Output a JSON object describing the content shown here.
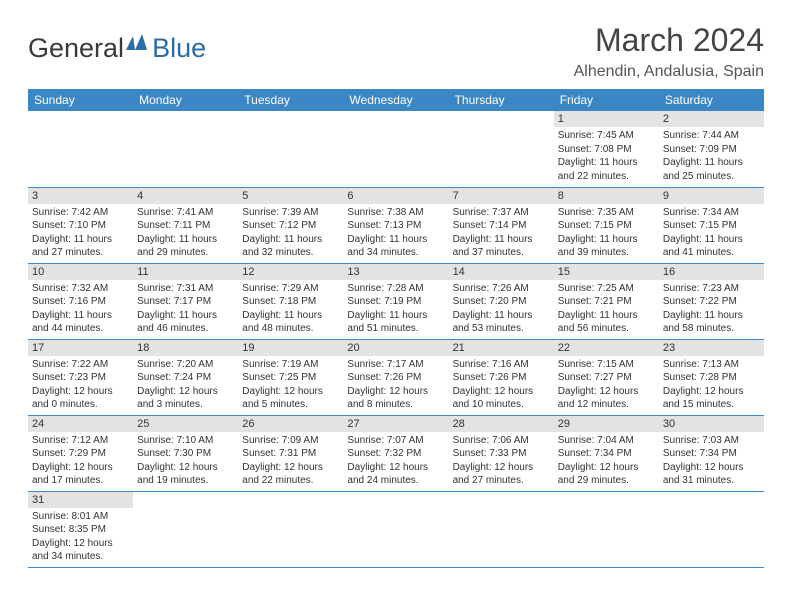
{
  "logo": {
    "text1": "General",
    "text2": "Blue"
  },
  "title": "March 2024",
  "location": "Alhendin, Andalusia, Spain",
  "colors": {
    "header_bg": "#3b86c4",
    "header_fg": "#ffffff",
    "daynum_bg": "#e3e3e3",
    "row_border": "#3b86c4",
    "title_color": "#444444",
    "logo_gray": "#3a3a3a",
    "logo_blue": "#2b6ca3"
  },
  "weekdays": [
    "Sunday",
    "Monday",
    "Tuesday",
    "Wednesday",
    "Thursday",
    "Friday",
    "Saturday"
  ],
  "weeks": [
    [
      {
        "empty": true
      },
      {
        "empty": true
      },
      {
        "empty": true
      },
      {
        "empty": true
      },
      {
        "empty": true
      },
      {
        "day": "1",
        "sunrise": "Sunrise: 7:45 AM",
        "sunset": "Sunset: 7:08 PM",
        "d1": "Daylight: 11 hours",
        "d2": "and 22 minutes."
      },
      {
        "day": "2",
        "sunrise": "Sunrise: 7:44 AM",
        "sunset": "Sunset: 7:09 PM",
        "d1": "Daylight: 11 hours",
        "d2": "and 25 minutes."
      }
    ],
    [
      {
        "day": "3",
        "sunrise": "Sunrise: 7:42 AM",
        "sunset": "Sunset: 7:10 PM",
        "d1": "Daylight: 11 hours",
        "d2": "and 27 minutes."
      },
      {
        "day": "4",
        "sunrise": "Sunrise: 7:41 AM",
        "sunset": "Sunset: 7:11 PM",
        "d1": "Daylight: 11 hours",
        "d2": "and 29 minutes."
      },
      {
        "day": "5",
        "sunrise": "Sunrise: 7:39 AM",
        "sunset": "Sunset: 7:12 PM",
        "d1": "Daylight: 11 hours",
        "d2": "and 32 minutes."
      },
      {
        "day": "6",
        "sunrise": "Sunrise: 7:38 AM",
        "sunset": "Sunset: 7:13 PM",
        "d1": "Daylight: 11 hours",
        "d2": "and 34 minutes."
      },
      {
        "day": "7",
        "sunrise": "Sunrise: 7:37 AM",
        "sunset": "Sunset: 7:14 PM",
        "d1": "Daylight: 11 hours",
        "d2": "and 37 minutes."
      },
      {
        "day": "8",
        "sunrise": "Sunrise: 7:35 AM",
        "sunset": "Sunset: 7:15 PM",
        "d1": "Daylight: 11 hours",
        "d2": "and 39 minutes."
      },
      {
        "day": "9",
        "sunrise": "Sunrise: 7:34 AM",
        "sunset": "Sunset: 7:15 PM",
        "d1": "Daylight: 11 hours",
        "d2": "and 41 minutes."
      }
    ],
    [
      {
        "day": "10",
        "sunrise": "Sunrise: 7:32 AM",
        "sunset": "Sunset: 7:16 PM",
        "d1": "Daylight: 11 hours",
        "d2": "and 44 minutes."
      },
      {
        "day": "11",
        "sunrise": "Sunrise: 7:31 AM",
        "sunset": "Sunset: 7:17 PM",
        "d1": "Daylight: 11 hours",
        "d2": "and 46 minutes."
      },
      {
        "day": "12",
        "sunrise": "Sunrise: 7:29 AM",
        "sunset": "Sunset: 7:18 PM",
        "d1": "Daylight: 11 hours",
        "d2": "and 48 minutes."
      },
      {
        "day": "13",
        "sunrise": "Sunrise: 7:28 AM",
        "sunset": "Sunset: 7:19 PM",
        "d1": "Daylight: 11 hours",
        "d2": "and 51 minutes."
      },
      {
        "day": "14",
        "sunrise": "Sunrise: 7:26 AM",
        "sunset": "Sunset: 7:20 PM",
        "d1": "Daylight: 11 hours",
        "d2": "and 53 minutes."
      },
      {
        "day": "15",
        "sunrise": "Sunrise: 7:25 AM",
        "sunset": "Sunset: 7:21 PM",
        "d1": "Daylight: 11 hours",
        "d2": "and 56 minutes."
      },
      {
        "day": "16",
        "sunrise": "Sunrise: 7:23 AM",
        "sunset": "Sunset: 7:22 PM",
        "d1": "Daylight: 11 hours",
        "d2": "and 58 minutes."
      }
    ],
    [
      {
        "day": "17",
        "sunrise": "Sunrise: 7:22 AM",
        "sunset": "Sunset: 7:23 PM",
        "d1": "Daylight: 12 hours",
        "d2": "and 0 minutes."
      },
      {
        "day": "18",
        "sunrise": "Sunrise: 7:20 AM",
        "sunset": "Sunset: 7:24 PM",
        "d1": "Daylight: 12 hours",
        "d2": "and 3 minutes."
      },
      {
        "day": "19",
        "sunrise": "Sunrise: 7:19 AM",
        "sunset": "Sunset: 7:25 PM",
        "d1": "Daylight: 12 hours",
        "d2": "and 5 minutes."
      },
      {
        "day": "20",
        "sunrise": "Sunrise: 7:17 AM",
        "sunset": "Sunset: 7:26 PM",
        "d1": "Daylight: 12 hours",
        "d2": "and 8 minutes."
      },
      {
        "day": "21",
        "sunrise": "Sunrise: 7:16 AM",
        "sunset": "Sunset: 7:26 PM",
        "d1": "Daylight: 12 hours",
        "d2": "and 10 minutes."
      },
      {
        "day": "22",
        "sunrise": "Sunrise: 7:15 AM",
        "sunset": "Sunset: 7:27 PM",
        "d1": "Daylight: 12 hours",
        "d2": "and 12 minutes."
      },
      {
        "day": "23",
        "sunrise": "Sunrise: 7:13 AM",
        "sunset": "Sunset: 7:28 PM",
        "d1": "Daylight: 12 hours",
        "d2": "and 15 minutes."
      }
    ],
    [
      {
        "day": "24",
        "sunrise": "Sunrise: 7:12 AM",
        "sunset": "Sunset: 7:29 PM",
        "d1": "Daylight: 12 hours",
        "d2": "and 17 minutes."
      },
      {
        "day": "25",
        "sunrise": "Sunrise: 7:10 AM",
        "sunset": "Sunset: 7:30 PM",
        "d1": "Daylight: 12 hours",
        "d2": "and 19 minutes."
      },
      {
        "day": "26",
        "sunrise": "Sunrise: 7:09 AM",
        "sunset": "Sunset: 7:31 PM",
        "d1": "Daylight: 12 hours",
        "d2": "and 22 minutes."
      },
      {
        "day": "27",
        "sunrise": "Sunrise: 7:07 AM",
        "sunset": "Sunset: 7:32 PM",
        "d1": "Daylight: 12 hours",
        "d2": "and 24 minutes."
      },
      {
        "day": "28",
        "sunrise": "Sunrise: 7:06 AM",
        "sunset": "Sunset: 7:33 PM",
        "d1": "Daylight: 12 hours",
        "d2": "and 27 minutes."
      },
      {
        "day": "29",
        "sunrise": "Sunrise: 7:04 AM",
        "sunset": "Sunset: 7:34 PM",
        "d1": "Daylight: 12 hours",
        "d2": "and 29 minutes."
      },
      {
        "day": "30",
        "sunrise": "Sunrise: 7:03 AM",
        "sunset": "Sunset: 7:34 PM",
        "d1": "Daylight: 12 hours",
        "d2": "and 31 minutes."
      }
    ],
    [
      {
        "day": "31",
        "sunrise": "Sunrise: 8:01 AM",
        "sunset": "Sunset: 8:35 PM",
        "d1": "Daylight: 12 hours",
        "d2": "and 34 minutes."
      },
      {
        "empty": true
      },
      {
        "empty": true
      },
      {
        "empty": true
      },
      {
        "empty": true
      },
      {
        "empty": true
      },
      {
        "empty": true
      }
    ]
  ]
}
